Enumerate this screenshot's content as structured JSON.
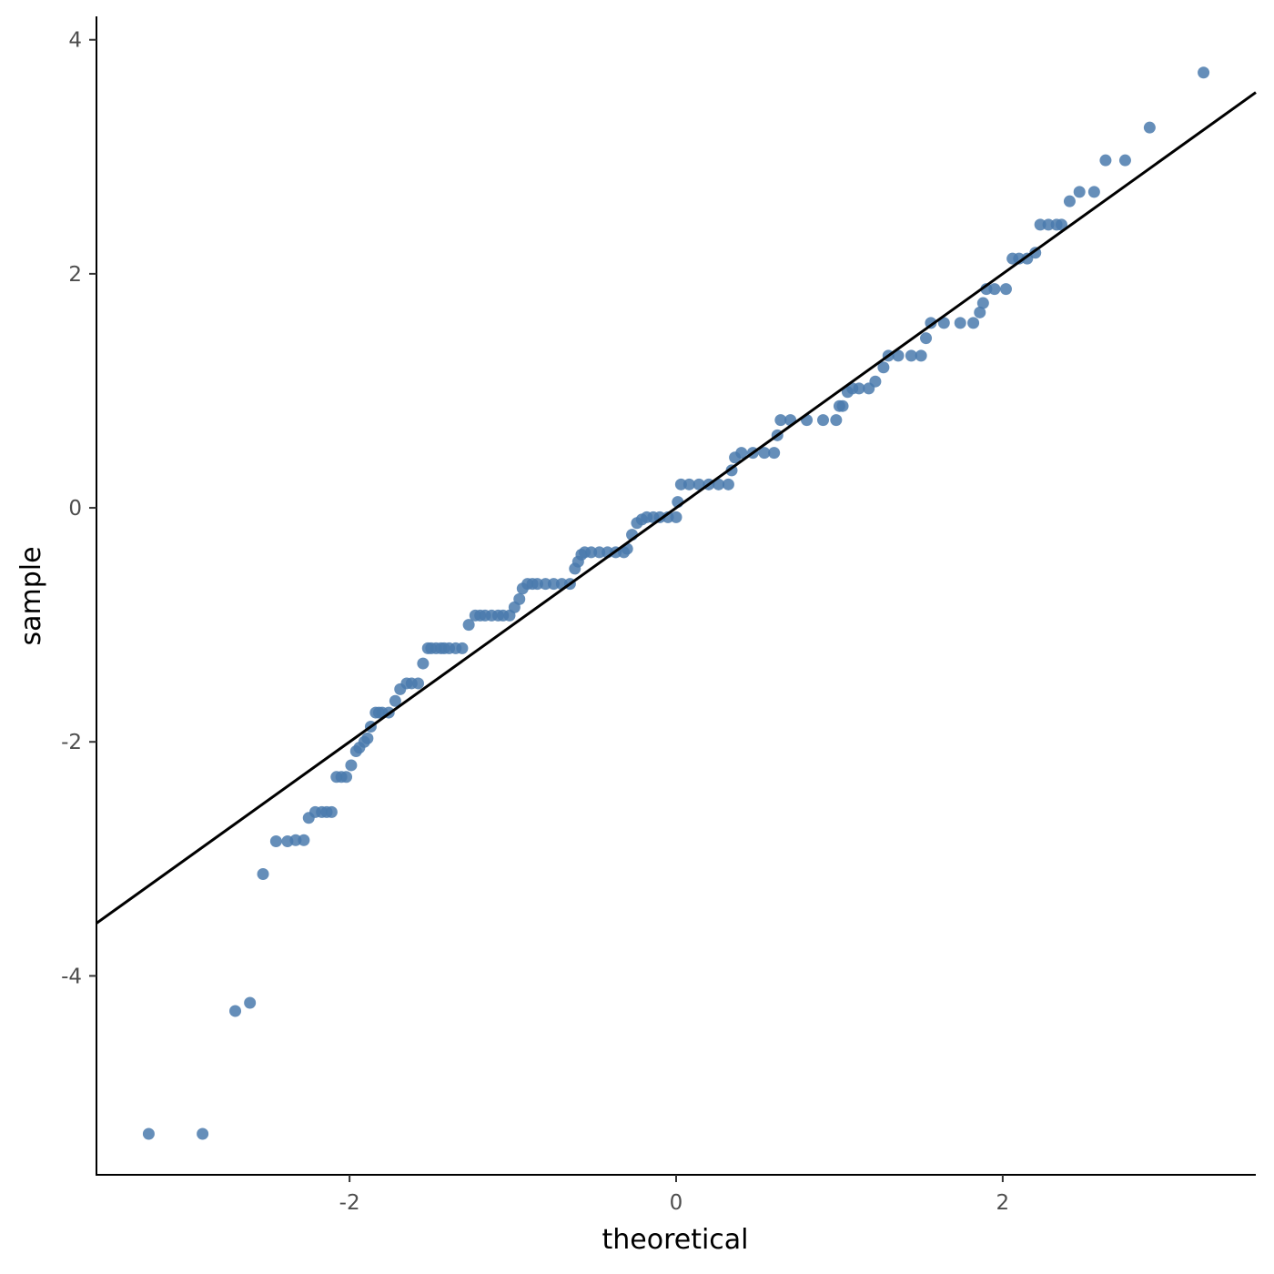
{
  "chart_data": {
    "type": "scatter",
    "title": "",
    "xlabel": "theoretical",
    "ylabel": "sample",
    "xlim": [
      -3.55,
      3.55
    ],
    "ylim": [
      -5.7,
      4.2
    ],
    "x_ticks": [
      -2,
      0,
      2
    ],
    "y_ticks": [
      -4,
      -2,
      0,
      2,
      4
    ],
    "x_tick_labels": [
      "-2",
      "0",
      "2"
    ],
    "y_tick_labels": [
      "-4",
      "-2",
      "0",
      "2",
      "4"
    ],
    "grid": false,
    "legend": "none",
    "point_color": "#4a7aad",
    "line_color": "#000000",
    "reference_line": {
      "intercept": 0.0,
      "slope": 1.0
    },
    "x": [
      -3.23,
      -2.9,
      -2.7,
      -2.61,
      -2.53,
      -2.45,
      -2.38,
      -2.33,
      -2.28,
      -2.25,
      -2.21,
      -2.17,
      -2.14,
      -2.11,
      -2.08,
      -2.05,
      -2.02,
      -1.99,
      -1.96,
      -1.94,
      -1.91,
      -1.89,
      -1.87,
      -1.84,
      -1.82,
      -1.8,
      -1.76,
      -1.72,
      -1.69,
      -1.65,
      -1.62,
      -1.58,
      -1.55,
      -1.52,
      -1.5,
      -1.47,
      -1.44,
      -1.42,
      -1.39,
      -1.35,
      -1.31,
      -1.27,
      -1.23,
      -1.2,
      -1.17,
      -1.13,
      -1.09,
      -1.06,
      -1.02,
      -0.99,
      -0.96,
      -0.94,
      -0.91,
      -0.88,
      -0.85,
      -0.8,
      -0.75,
      -0.7,
      -0.65,
      -0.62,
      -0.6,
      -0.58,
      -0.56,
      -0.52,
      -0.47,
      -0.42,
      -0.37,
      -0.32,
      -0.3,
      -0.27,
      -0.24,
      -0.21,
      -0.18,
      -0.14,
      -0.1,
      -0.05,
      0.0,
      0.01,
      0.03,
      0.08,
      0.14,
      0.2,
      0.26,
      0.32,
      0.34,
      0.36,
      0.4,
      0.47,
      0.54,
      0.6,
      0.62,
      0.64,
      0.7,
      0.8,
      0.9,
      0.98,
      1.0,
      1.02,
      1.05,
      1.08,
      1.12,
      1.18,
      1.22,
      1.27,
      1.3,
      1.36,
      1.44,
      1.5,
      1.53,
      1.56,
      1.64,
      1.74,
      1.82,
      1.86,
      1.88,
      1.9,
      1.95,
      2.02,
      2.06,
      2.1,
      2.15,
      2.2,
      2.23,
      2.28,
      2.33,
      2.36,
      2.41,
      2.47,
      2.56,
      2.63,
      2.75,
      2.9,
      3.23
    ],
    "y": [
      -5.35,
      -5.35,
      -4.3,
      -4.23,
      -3.13,
      -2.85,
      -2.85,
      -2.84,
      -2.84,
      -2.65,
      -2.6,
      -2.6,
      -2.6,
      -2.6,
      -2.3,
      -2.3,
      -2.3,
      -2.2,
      -2.08,
      -2.05,
      -2.0,
      -1.97,
      -1.87,
      -1.75,
      -1.75,
      -1.75,
      -1.75,
      -1.65,
      -1.55,
      -1.5,
      -1.5,
      -1.5,
      -1.33,
      -1.2,
      -1.2,
      -1.2,
      -1.2,
      -1.2,
      -1.2,
      -1.2,
      -1.2,
      -1.0,
      -0.92,
      -0.92,
      -0.92,
      -0.92,
      -0.92,
      -0.92,
      -0.92,
      -0.85,
      -0.78,
      -0.69,
      -0.65,
      -0.65,
      -0.65,
      -0.65,
      -0.65,
      -0.65,
      -0.65,
      -0.52,
      -0.46,
      -0.4,
      -0.38,
      -0.38,
      -0.38,
      -0.38,
      -0.38,
      -0.38,
      -0.35,
      -0.23,
      -0.13,
      -0.1,
      -0.08,
      -0.08,
      -0.08,
      -0.08,
      -0.08,
      0.05,
      0.2,
      0.2,
      0.2,
      0.2,
      0.2,
      0.2,
      0.32,
      0.43,
      0.47,
      0.47,
      0.47,
      0.47,
      0.62,
      0.75,
      0.75,
      0.75,
      0.75,
      0.75,
      0.87,
      0.87,
      0.99,
      1.02,
      1.02,
      1.02,
      1.08,
      1.2,
      1.3,
      1.3,
      1.3,
      1.3,
      1.45,
      1.58,
      1.58,
      1.58,
      1.58,
      1.67,
      1.75,
      1.87,
      1.87,
      1.87,
      2.13,
      2.13,
      2.13,
      2.18,
      2.42,
      2.42,
      2.42,
      2.42,
      2.62,
      2.7,
      2.7,
      2.97,
      2.97,
      3.25,
      3.72
    ]
  }
}
